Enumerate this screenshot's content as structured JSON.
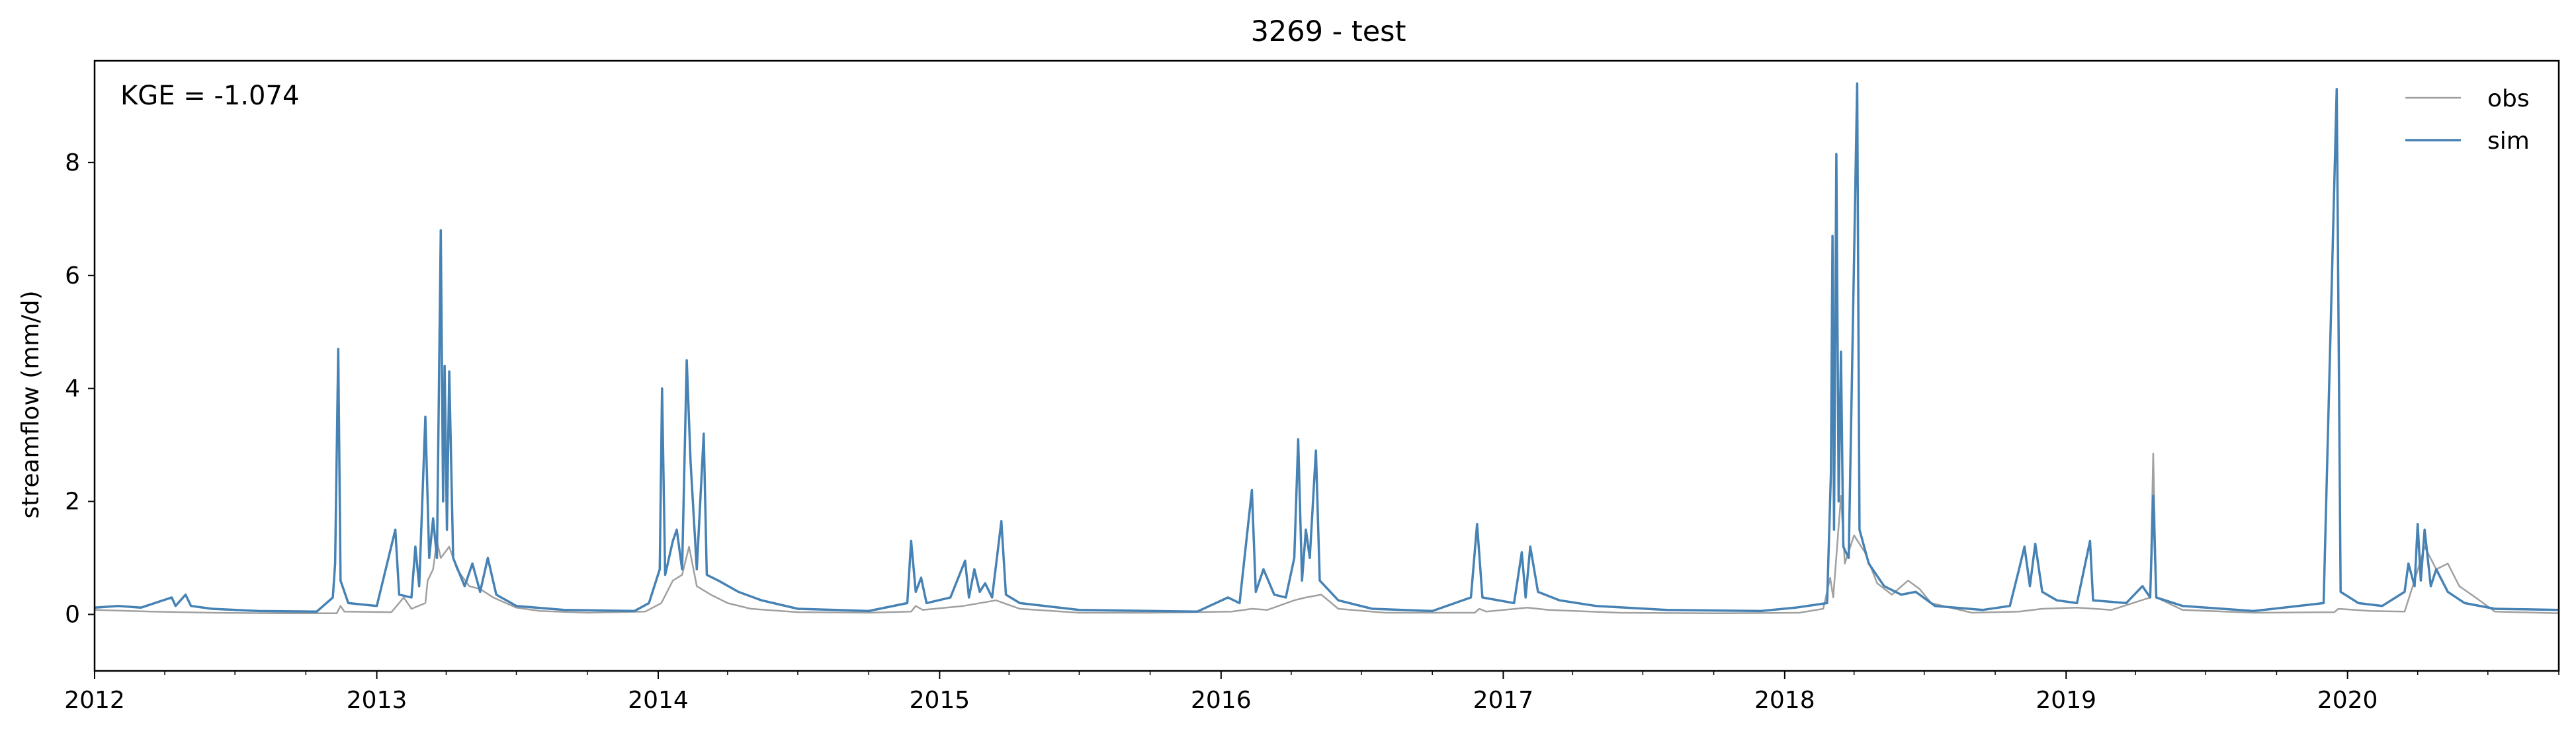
{
  "chart_data": {
    "type": "line",
    "title": "3269 - test",
    "xlabel": "",
    "ylabel": "streamflow (mm/d)",
    "annotation": "KGE = -1.074",
    "x_range": [
      "2012-01-01",
      "2020-10-01"
    ],
    "ylim": [
      -1.0,
      9.8
    ],
    "y_ticks": [
      0,
      2,
      4,
      6,
      8
    ],
    "x_ticks": [
      "2012",
      "2013",
      "2014",
      "2015",
      "2016",
      "2017",
      "2018",
      "2019",
      "2020"
    ],
    "grid": false,
    "legend_position": "top-right",
    "series": [
      {
        "name": "obs",
        "color": "#a0a0a0",
        "points": [
          [
            "2012-01-01",
            0.08
          ],
          [
            "2012-03-15",
            0.05
          ],
          [
            "2012-06-01",
            0.03
          ],
          [
            "2012-09-01",
            0.02
          ],
          [
            "2012-11-10",
            0.02
          ],
          [
            "2012-11-15",
            0.15
          ],
          [
            "2012-11-20",
            0.05
          ],
          [
            "2013-01-20",
            0.04
          ],
          [
            "2013-02-05",
            0.3
          ],
          [
            "2013-02-15",
            0.1
          ],
          [
            "2013-03-05",
            0.2
          ],
          [
            "2013-03-08",
            0.6
          ],
          [
            "2013-03-15",
            0.8
          ],
          [
            "2013-03-20",
            1.3
          ],
          [
            "2013-03-25",
            1.0
          ],
          [
            "2013-04-05",
            1.2
          ],
          [
            "2013-04-15",
            0.8
          ],
          [
            "2013-05-01",
            0.5
          ],
          [
            "2013-05-15",
            0.45
          ],
          [
            "2013-06-01",
            0.3
          ],
          [
            "2013-07-01",
            0.12
          ],
          [
            "2013-08-01",
            0.06
          ],
          [
            "2013-10-01",
            0.03
          ],
          [
            "2013-12-15",
            0.05
          ],
          [
            "2014-01-05",
            0.2
          ],
          [
            "2014-01-20",
            0.6
          ],
          [
            "2014-02-01",
            0.7
          ],
          [
            "2014-02-10",
            1.2
          ],
          [
            "2014-02-20",
            0.5
          ],
          [
            "2014-03-10",
            0.35
          ],
          [
            "2014-04-01",
            0.2
          ],
          [
            "2014-05-01",
            0.1
          ],
          [
            "2014-07-01",
            0.04
          ],
          [
            "2014-10-01",
            0.03
          ],
          [
            "2014-11-25",
            0.05
          ],
          [
            "2014-12-01",
            0.15
          ],
          [
            "2014-12-10",
            0.08
          ],
          [
            "2015-02-01",
            0.15
          ],
          [
            "2015-03-15",
            0.25
          ],
          [
            "2015-04-15",
            0.1
          ],
          [
            "2015-07-01",
            0.03
          ],
          [
            "2015-10-01",
            0.03
          ],
          [
            "2016-01-15",
            0.05
          ],
          [
            "2016-02-10",
            0.1
          ],
          [
            "2016-03-01",
            0.08
          ],
          [
            "2016-04-05",
            0.25
          ],
          [
            "2016-04-20",
            0.3
          ],
          [
            "2016-05-10",
            0.35
          ],
          [
            "2016-06-01",
            0.1
          ],
          [
            "2016-08-01",
            0.03
          ],
          [
            "2016-11-25",
            0.03
          ],
          [
            "2016-12-01",
            0.1
          ],
          [
            "2016-12-10",
            0.05
          ],
          [
            "2017-02-01",
            0.12
          ],
          [
            "2017-03-01",
            0.08
          ],
          [
            "2017-06-01",
            0.03
          ],
          [
            "2017-10-01",
            0.02
          ],
          [
            "2018-01-20",
            0.03
          ],
          [
            "2018-02-20",
            0.1
          ],
          [
            "2018-03-01",
            0.65
          ],
          [
            "2018-03-05",
            0.3
          ],
          [
            "2018-03-15",
            2.1
          ],
          [
            "2018-03-20",
            0.9
          ],
          [
            "2018-04-01",
            1.4
          ],
          [
            "2018-04-15",
            1.1
          ],
          [
            "2018-05-01",
            0.55
          ],
          [
            "2018-05-20",
            0.35
          ],
          [
            "2018-06-10",
            0.6
          ],
          [
            "2018-06-25",
            0.45
          ],
          [
            "2018-07-10",
            0.2
          ],
          [
            "2018-09-01",
            0.03
          ],
          [
            "2018-11-01",
            0.05
          ],
          [
            "2018-12-01",
            0.1
          ],
          [
            "2019-01-15",
            0.12
          ],
          [
            "2019-03-01",
            0.08
          ],
          [
            "2019-04-20",
            0.3
          ],
          [
            "2019-04-24",
            2.85
          ],
          [
            "2019-04-28",
            0.3
          ],
          [
            "2019-06-01",
            0.08
          ],
          [
            "2019-09-01",
            0.03
          ],
          [
            "2019-12-15",
            0.04
          ],
          [
            "2019-12-20",
            0.1
          ],
          [
            "2020-02-01",
            0.06
          ],
          [
            "2020-03-15",
            0.05
          ],
          [
            "2020-03-28",
            0.6
          ],
          [
            "2020-04-10",
            1.2
          ],
          [
            "2020-04-25",
            0.8
          ],
          [
            "2020-05-10",
            0.9
          ],
          [
            "2020-05-25",
            0.5
          ],
          [
            "2020-06-15",
            0.3
          ],
          [
            "2020-07-10",
            0.05
          ],
          [
            "2020-10-01",
            0.02
          ]
        ]
      },
      {
        "name": "sim",
        "color": "#4682b4",
        "points": [
          [
            "2012-01-01",
            0.12
          ],
          [
            "2012-02-01",
            0.15
          ],
          [
            "2012-03-01",
            0.12
          ],
          [
            "2012-04-10",
            0.3
          ],
          [
            "2012-04-15",
            0.15
          ],
          [
            "2012-04-28",
            0.35
          ],
          [
            "2012-05-05",
            0.15
          ],
          [
            "2012-06-01",
            0.1
          ],
          [
            "2012-08-01",
            0.06
          ],
          [
            "2012-10-15",
            0.05
          ],
          [
            "2012-11-05",
            0.3
          ],
          [
            "2012-11-08",
            0.9
          ],
          [
            "2012-11-12",
            4.7
          ],
          [
            "2012-11-15",
            0.6
          ],
          [
            "2012-11-25",
            0.2
          ],
          [
            "2013-01-01",
            0.15
          ],
          [
            "2013-01-25",
            1.5
          ],
          [
            "2013-01-30",
            0.35
          ],
          [
            "2013-02-15",
            0.3
          ],
          [
            "2013-02-20",
            1.2
          ],
          [
            "2013-02-25",
            0.5
          ],
          [
            "2013-03-05",
            3.5
          ],
          [
            "2013-03-10",
            1.0
          ],
          [
            "2013-03-15",
            1.7
          ],
          [
            "2013-03-20",
            1.0
          ],
          [
            "2013-03-25",
            6.8
          ],
          [
            "2013-03-28",
            2.0
          ],
          [
            "2013-03-30",
            4.4
          ],
          [
            "2013-04-02",
            1.5
          ],
          [
            "2013-04-05",
            4.3
          ],
          [
            "2013-04-10",
            1.0
          ],
          [
            "2013-04-25",
            0.5
          ],
          [
            "2013-05-05",
            0.9
          ],
          [
            "2013-05-15",
            0.4
          ],
          [
            "2013-05-25",
            1.0
          ],
          [
            "2013-06-05",
            0.35
          ],
          [
            "2013-07-01",
            0.15
          ],
          [
            "2013-09-01",
            0.08
          ],
          [
            "2013-12-01",
            0.06
          ],
          [
            "2013-12-20",
            0.2
          ],
          [
            "2014-01-03",
            0.8
          ],
          [
            "2014-01-06",
            4.0
          ],
          [
            "2014-01-10",
            0.7
          ],
          [
            "2014-01-20",
            1.3
          ],
          [
            "2014-01-25",
            1.5
          ],
          [
            "2014-02-01",
            0.8
          ],
          [
            "2014-02-07",
            4.5
          ],
          [
            "2014-02-12",
            2.7
          ],
          [
            "2014-02-20",
            0.8
          ],
          [
            "2014-03-01",
            3.2
          ],
          [
            "2014-03-05",
            0.7
          ],
          [
            "2014-03-20",
            0.6
          ],
          [
            "2014-04-15",
            0.4
          ],
          [
            "2014-05-15",
            0.25
          ],
          [
            "2014-07-01",
            0.1
          ],
          [
            "2014-10-01",
            0.06
          ],
          [
            "2014-11-20",
            0.2
          ],
          [
            "2014-11-25",
            1.3
          ],
          [
            "2014-12-01",
            0.4
          ],
          [
            "2014-12-08",
            0.65
          ],
          [
            "2014-12-15",
            0.2
          ],
          [
            "2015-01-15",
            0.3
          ],
          [
            "2015-02-03",
            0.95
          ],
          [
            "2015-02-08",
            0.3
          ],
          [
            "2015-02-15",
            0.8
          ],
          [
            "2015-02-22",
            0.4
          ],
          [
            "2015-03-01",
            0.55
          ],
          [
            "2015-03-10",
            0.3
          ],
          [
            "2015-03-22",
            1.65
          ],
          [
            "2015-03-28",
            0.35
          ],
          [
            "2015-04-15",
            0.2
          ],
          [
            "2015-07-01",
            0.08
          ],
          [
            "2015-12-01",
            0.05
          ],
          [
            "2016-01-10",
            0.3
          ],
          [
            "2016-01-25",
            0.2
          ],
          [
            "2016-02-10",
            2.2
          ],
          [
            "2016-02-15",
            0.4
          ],
          [
            "2016-02-25",
            0.8
          ],
          [
            "2016-03-10",
            0.35
          ],
          [
            "2016-03-25",
            0.3
          ],
          [
            "2016-04-05",
            1.0
          ],
          [
            "2016-04-10",
            3.1
          ],
          [
            "2016-04-15",
            0.6
          ],
          [
            "2016-04-20",
            1.5
          ],
          [
            "2016-04-25",
            1.0
          ],
          [
            "2016-05-03",
            2.9
          ],
          [
            "2016-05-08",
            0.6
          ],
          [
            "2016-06-01",
            0.25
          ],
          [
            "2016-07-15",
            0.1
          ],
          [
            "2016-10-01",
            0.06
          ],
          [
            "2016-11-20",
            0.3
          ],
          [
            "2016-11-28",
            1.6
          ],
          [
            "2016-12-05",
            0.3
          ],
          [
            "2017-01-15",
            0.2
          ],
          [
            "2017-01-25",
            1.1
          ],
          [
            "2017-01-30",
            0.3
          ],
          [
            "2017-02-05",
            1.2
          ],
          [
            "2017-02-15",
            0.4
          ],
          [
            "2017-03-15",
            0.25
          ],
          [
            "2017-05-01",
            0.15
          ],
          [
            "2017-08-01",
            0.08
          ],
          [
            "2017-12-01",
            0.06
          ],
          [
            "2018-01-15",
            0.12
          ],
          [
            "2018-02-25",
            0.2
          ],
          [
            "2018-03-02",
            2.5
          ],
          [
            "2018-03-04",
            6.7
          ],
          [
            "2018-03-06",
            1.5
          ],
          [
            "2018-03-09",
            8.15
          ],
          [
            "2018-03-12",
            2.0
          ],
          [
            "2018-03-15",
            4.65
          ],
          [
            "2018-03-18",
            1.2
          ],
          [
            "2018-03-25",
            1.0
          ],
          [
            "2018-04-05",
            9.4
          ],
          [
            "2018-04-08",
            1.5
          ],
          [
            "2018-04-20",
            0.9
          ],
          [
            "2018-05-10",
            0.5
          ],
          [
            "2018-06-01",
            0.35
          ],
          [
            "2018-06-20",
            0.4
          ],
          [
            "2018-07-15",
            0.15
          ],
          [
            "2018-09-15",
            0.08
          ],
          [
            "2018-10-20",
            0.15
          ],
          [
            "2018-11-01",
            0.8
          ],
          [
            "2018-11-08",
            1.2
          ],
          [
            "2018-11-15",
            0.5
          ],
          [
            "2018-11-22",
            1.25
          ],
          [
            "2018-12-01",
            0.4
          ],
          [
            "2018-12-20",
            0.25
          ],
          [
            "2019-01-15",
            0.2
          ],
          [
            "2019-02-01",
            1.3
          ],
          [
            "2019-02-05",
            0.25
          ],
          [
            "2019-03-20",
            0.2
          ],
          [
            "2019-04-10",
            0.5
          ],
          [
            "2019-04-20",
            0.3
          ],
          [
            "2019-04-24",
            2.1
          ],
          [
            "2019-04-28",
            0.3
          ],
          [
            "2019-06-01",
            0.15
          ],
          [
            "2019-09-01",
            0.06
          ],
          [
            "2019-12-01",
            0.2
          ],
          [
            "2019-12-18",
            9.3
          ],
          [
            "2019-12-23",
            0.4
          ],
          [
            "2020-01-15",
            0.2
          ],
          [
            "2020-02-15",
            0.15
          ],
          [
            "2020-03-15",
            0.4
          ],
          [
            "2020-03-20",
            0.9
          ],
          [
            "2020-03-28",
            0.5
          ],
          [
            "2020-04-01",
            1.6
          ],
          [
            "2020-04-05",
            0.6
          ],
          [
            "2020-04-10",
            1.5
          ],
          [
            "2020-04-18",
            0.5
          ],
          [
            "2020-04-25",
            0.8
          ],
          [
            "2020-05-10",
            0.4
          ],
          [
            "2020-06-01",
            0.2
          ],
          [
            "2020-07-10",
            0.1
          ],
          [
            "2020-10-01",
            0.08
          ]
        ]
      }
    ]
  }
}
